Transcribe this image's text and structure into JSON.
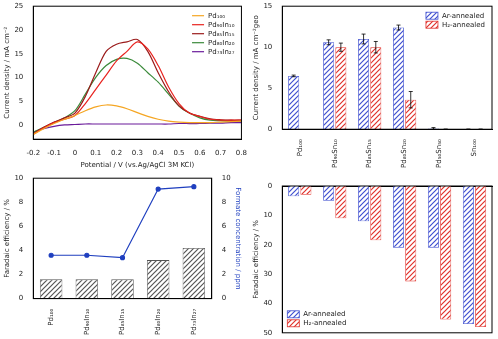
{
  "chart_data": [
    {
      "type": "line",
      "x_label": "Potential / V (vs.Ag/AgCl 3M KCl)",
      "y_label": "Current density / mA cm⁻²",
      "x": [
        -0.2,
        -0.15,
        -0.1,
        -0.05,
        0,
        0.05,
        0.1,
        0.15,
        0.2,
        0.25,
        0.3,
        0.35,
        0.4,
        0.45,
        0.5,
        0.55,
        0.6,
        0.65,
        0.7,
        0.75,
        0.8
      ],
      "series": [
        {
          "name": "Pd₁₀₀",
          "color": "#f5a623",
          "values": [
            -2,
            -0.8,
            0.3,
            1.2,
            2,
            3,
            3.8,
            4.2,
            4,
            3.4,
            2.6,
            1.8,
            1.2,
            0.8,
            0.6,
            0.5,
            0.5,
            0.5,
            0.6,
            0.7,
            0.8
          ]
        },
        {
          "name": "Pd₉₀In₁₀",
          "color": "#e8231f",
          "values": [
            -2,
            -0.6,
            0.5,
            1.2,
            2,
            4.5,
            7.5,
            10.5,
            13.5,
            15.5,
            17.5,
            16,
            12.5,
            8,
            4.5,
            2.5,
            1.8,
            1.2,
            1,
            1,
            1
          ]
        },
        {
          "name": "Pd₈₅In₁₅",
          "color": "#9b1b1b",
          "values": [
            -1.8,
            -0.5,
            0.6,
            1.5,
            2.5,
            6,
            11,
            15.5,
            17,
            17.5,
            18,
            15.5,
            11,
            7,
            4,
            2.5,
            1.8,
            1.3,
            1.1,
            1,
            1
          ]
        },
        {
          "name": "Pd₈₀In₂₀",
          "color": "#3a8a3a",
          "values": [
            -1.5,
            -0.5,
            0.5,
            1.5,
            3,
            6.5,
            10,
            12.5,
            13.8,
            14,
            13,
            11,
            9,
            6.5,
            4,
            2.5,
            1.5,
            1,
            0.9,
            0.8,
            0.8
          ]
        },
        {
          "name": "Pd₇₃In₂₇",
          "color": "#6a1b9a",
          "values": [
            -1.5,
            -0.8,
            -0.3,
            0,
            0.1,
            0.2,
            0.2,
            0.2,
            0.2,
            0.2,
            0.2,
            0.2,
            0.2,
            0.2,
            0.3,
            0.3,
            0.3,
            0.4,
            0.4,
            0.5,
            0.5
          ]
        }
      ],
      "xlim": [
        -0.2,
        0.8
      ],
      "xticks": [
        -0.2,
        -0.1,
        0,
        0.1,
        0.2,
        0.3,
        0.4,
        0.5,
        0.6,
        0.7,
        0.8
      ],
      "ylim": [
        -3,
        25
      ],
      "yticks": [
        0,
        5,
        10,
        15,
        20,
        25
      ],
      "grid": false,
      "legend": "upper right"
    },
    {
      "type": "bar",
      "y_label": "Current density / mA cm⁻²geo",
      "categories": [
        "Pd₁₀₀",
        "Pd₉₀Sn₁₀",
        "Pd₈₅Sn₁₅",
        "Pd₈₀Sn₂₀",
        "Pd₅₀Sn₅₀",
        "Sn₁₀₀"
      ],
      "series": [
        {
          "name": "Ar-annealed",
          "color": "#3f4fd0",
          "values": [
            6.5,
            10.6,
            11,
            12.4,
            0.1,
            0
          ],
          "errors": [
            0.1,
            0.3,
            0.6,
            0.3,
            0.1,
            0
          ]
        },
        {
          "name": "H₂-annealed",
          "color": "#e0302a",
          "values": [
            null,
            10,
            10,
            3.6,
            0,
            0
          ],
          "errors": [
            null,
            0.5,
            0.7,
            1,
            0,
            0
          ]
        }
      ],
      "ylim": [
        0,
        15
      ],
      "yticks": [
        0,
        5,
        10,
        15
      ],
      "grid": false,
      "legend": "upper right"
    },
    {
      "type": "bar",
      "y_label": "Faradaic efficiency / %",
      "y2_label": "Formate concentration / ppm",
      "categories": [
        "Pd₁₀₀",
        "Pd₉₀In₁₀",
        "Pd₈₅In₁₅",
        "Pd₈₀In₂₀",
        "Pd₇₃In₂₇"
      ],
      "series": [
        {
          "type": "bar",
          "color": "#555555",
          "values": [
            1.6,
            1.6,
            1.6,
            3.2,
            4.2
          ]
        },
        {
          "type": "line",
          "axis": "y2",
          "color": "#1f3fbf",
          "marker": "circle",
          "values": [
            3.6,
            3.6,
            3.4,
            9.1,
            9.3
          ]
        }
      ],
      "ylim": [
        0,
        10
      ],
      "yticks": [
        0,
        2,
        4,
        6,
        8,
        10
      ],
      "y2lim": [
        0,
        10
      ],
      "y2ticks": [
        0,
        2,
        4,
        6,
        8,
        10
      ],
      "grid": false
    },
    {
      "type": "bar",
      "y_label": "Faradaic efficiency / %",
      "categories": [
        "Pd₁₀₀",
        "Pd₉₀Sn₁₀",
        "Pd₈₅Sn₁₅",
        "Pd₈₀Sn₂₀",
        "Pd₅₀Sn₅₀",
        "Sn₁₀₀"
      ],
      "series": [
        {
          "name": "Ar-annealed",
          "color": "#3f4fd0",
          "values": [
            3.5,
            5,
            12,
            21,
            21,
            47
          ]
        },
        {
          "name": "H₂-annealed",
          "color": "#e0302a",
          "values": [
            3,
            11,
            18.5,
            32.5,
            45.5,
            48
          ]
        }
      ],
      "ylim": [
        50,
        0
      ],
      "yticks": [
        0,
        10,
        20,
        30,
        40,
        50
      ],
      "grid": false,
      "legend": "lower left",
      "tick_labels": "y"
    }
  ]
}
